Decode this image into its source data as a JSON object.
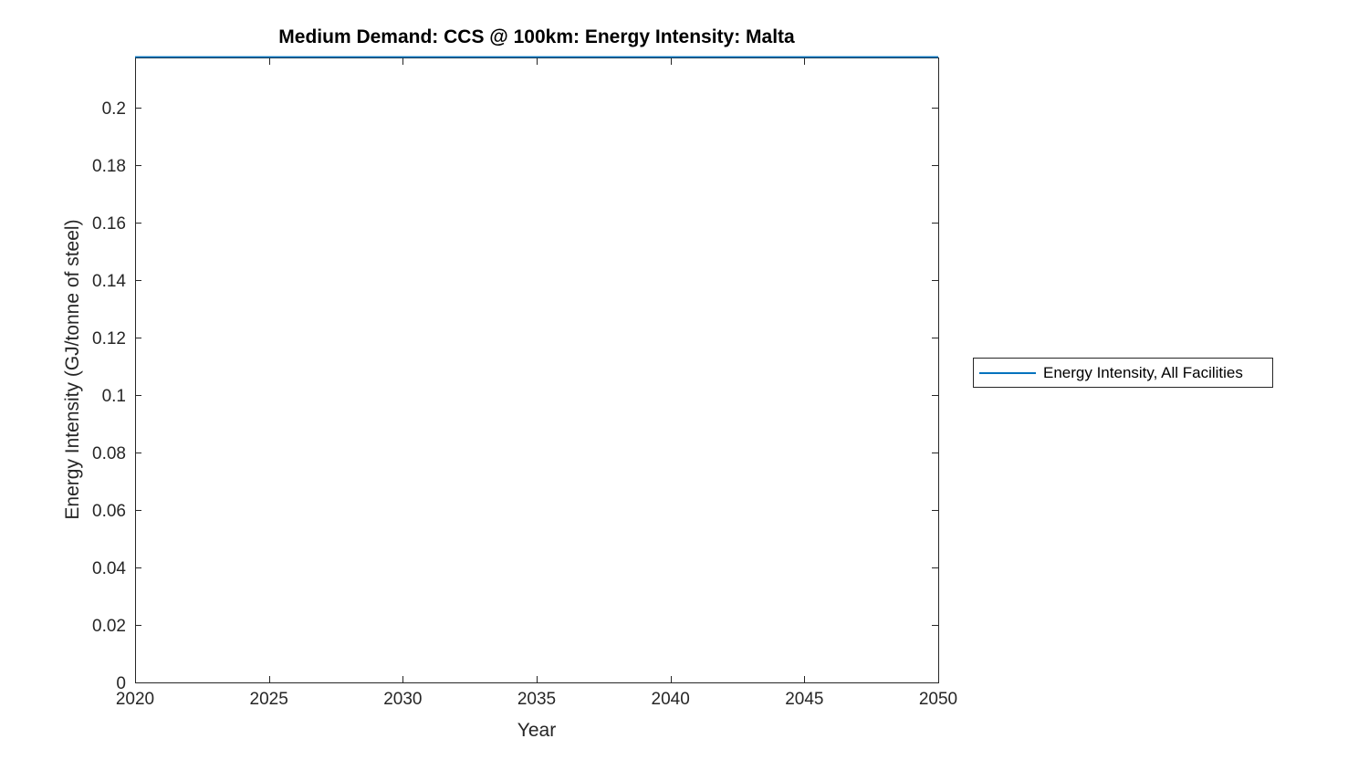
{
  "chart_data": {
    "type": "line",
    "title": "Medium Demand: CCS @ 100km: Energy Intensity: Malta",
    "xlabel": "Year",
    "ylabel": "Energy Intensity (GJ/tonne of steel)",
    "xlim": [
      2020,
      2050
    ],
    "ylim": [
      0,
      0.2175
    ],
    "xticks": [
      2020,
      2025,
      2030,
      2035,
      2040,
      2045,
      2050
    ],
    "xtick_labels": [
      "2020",
      "2025",
      "2030",
      "2035",
      "2040",
      "2045",
      "2050"
    ],
    "yticks": [
      0,
      0.02,
      0.04,
      0.06,
      0.08,
      0.1,
      0.12,
      0.14,
      0.16,
      0.18,
      0.2
    ],
    "ytick_labels": [
      "0",
      "0.02",
      "0.04",
      "0.06",
      "0.08",
      "0.1",
      "0.12",
      "0.14",
      "0.16",
      "0.18",
      "0.2"
    ],
    "grid": false,
    "box": true,
    "tick_direction": "in",
    "legend": {
      "position": "outside-right",
      "entries": [
        {
          "label": "Energy Intensity, All Facilities",
          "color": "#0072BD"
        }
      ]
    },
    "series": [
      {
        "name": "Energy Intensity, All Facilities",
        "color": "#0072BD",
        "x": [
          2020,
          2050
        ],
        "y": [
          0.2175,
          0.2175
        ]
      }
    ],
    "colors": {
      "axis": "#262626",
      "tick_label": "#262626",
      "title": "#000000",
      "background": "#ffffff"
    }
  }
}
